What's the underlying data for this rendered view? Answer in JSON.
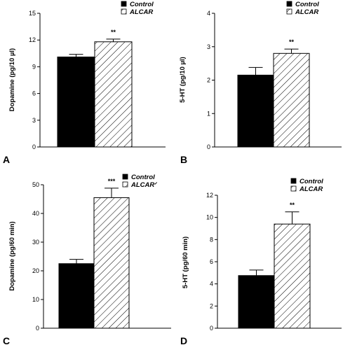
{
  "colors": {
    "control_fill": "#000000",
    "alcar_hatch": "#000000",
    "axis": "#000000",
    "background": "#ffffff"
  },
  "chart_data": [
    {
      "type": "bar",
      "panel_label": "A",
      "ylabel": "Dopamine (pg/10   µl)",
      "ylim": [
        0,
        15
      ],
      "yticks": [
        0,
        3,
        6,
        9,
        12,
        15
      ],
      "categories": [
        "Control",
        "ALCAR"
      ],
      "series": [
        {
          "name": "Control",
          "value": 10.1,
          "error": 0.3,
          "pattern": "solid"
        },
        {
          "name": "ALCAR",
          "value": 11.8,
          "error": 0.3,
          "pattern": "hatch"
        }
      ],
      "legend": {
        "position": "top-right",
        "items": [
          "Control",
          "ALCAR"
        ]
      },
      "significance": "**"
    },
    {
      "type": "bar",
      "panel_label": "B",
      "ylabel": "5-HT (pg/10   µl)",
      "ylim": [
        0,
        4
      ],
      "yticks": [
        0,
        1,
        2,
        3,
        4
      ],
      "categories": [
        "Control",
        "ALCAR"
      ],
      "series": [
        {
          "name": "Control",
          "value": 2.15,
          "error": 0.23,
          "pattern": "solid"
        },
        {
          "name": "ALCAR",
          "value": 2.8,
          "error": 0.13,
          "pattern": "hatch"
        }
      ],
      "legend": {
        "position": "top-right",
        "items": [
          "Control",
          "ALCAR"
        ]
      },
      "significance": "**"
    },
    {
      "type": "bar",
      "panel_label": "C",
      "ylabel": "Dopamine (pg/60 min)",
      "ylim": [
        0,
        50
      ],
      "yticks": [
        0,
        10,
        20,
        30,
        40,
        50
      ],
      "categories": [
        "Control",
        "ALCARᐟ"
      ],
      "series": [
        {
          "name": "Control",
          "value": 22.5,
          "error": 1.5,
          "pattern": "solid"
        },
        {
          "name": "ALCARᐟ",
          "value": 45.5,
          "error": 3.3,
          "pattern": "hatch"
        }
      ],
      "legend": {
        "position": "top-right",
        "items": [
          "Control",
          "ALCARᐟ"
        ]
      },
      "significance": "***"
    },
    {
      "type": "bar",
      "panel_label": "D",
      "ylabel": "5-HT (pg/60 min)",
      "ylim": [
        0,
        12
      ],
      "yticks": [
        0,
        2,
        4,
        6,
        8,
        10,
        12
      ],
      "categories": [
        "Control",
        "ALCAR"
      ],
      "series": [
        {
          "name": "Control",
          "value": 4.75,
          "error": 0.5,
          "pattern": "solid"
        },
        {
          "name": "ALCAR",
          "value": 9.4,
          "error": 1.1,
          "pattern": "hatch"
        }
      ],
      "legend": {
        "position": "top-right",
        "items": [
          "Control",
          "ALCAR"
        ]
      },
      "significance": "**"
    }
  ]
}
